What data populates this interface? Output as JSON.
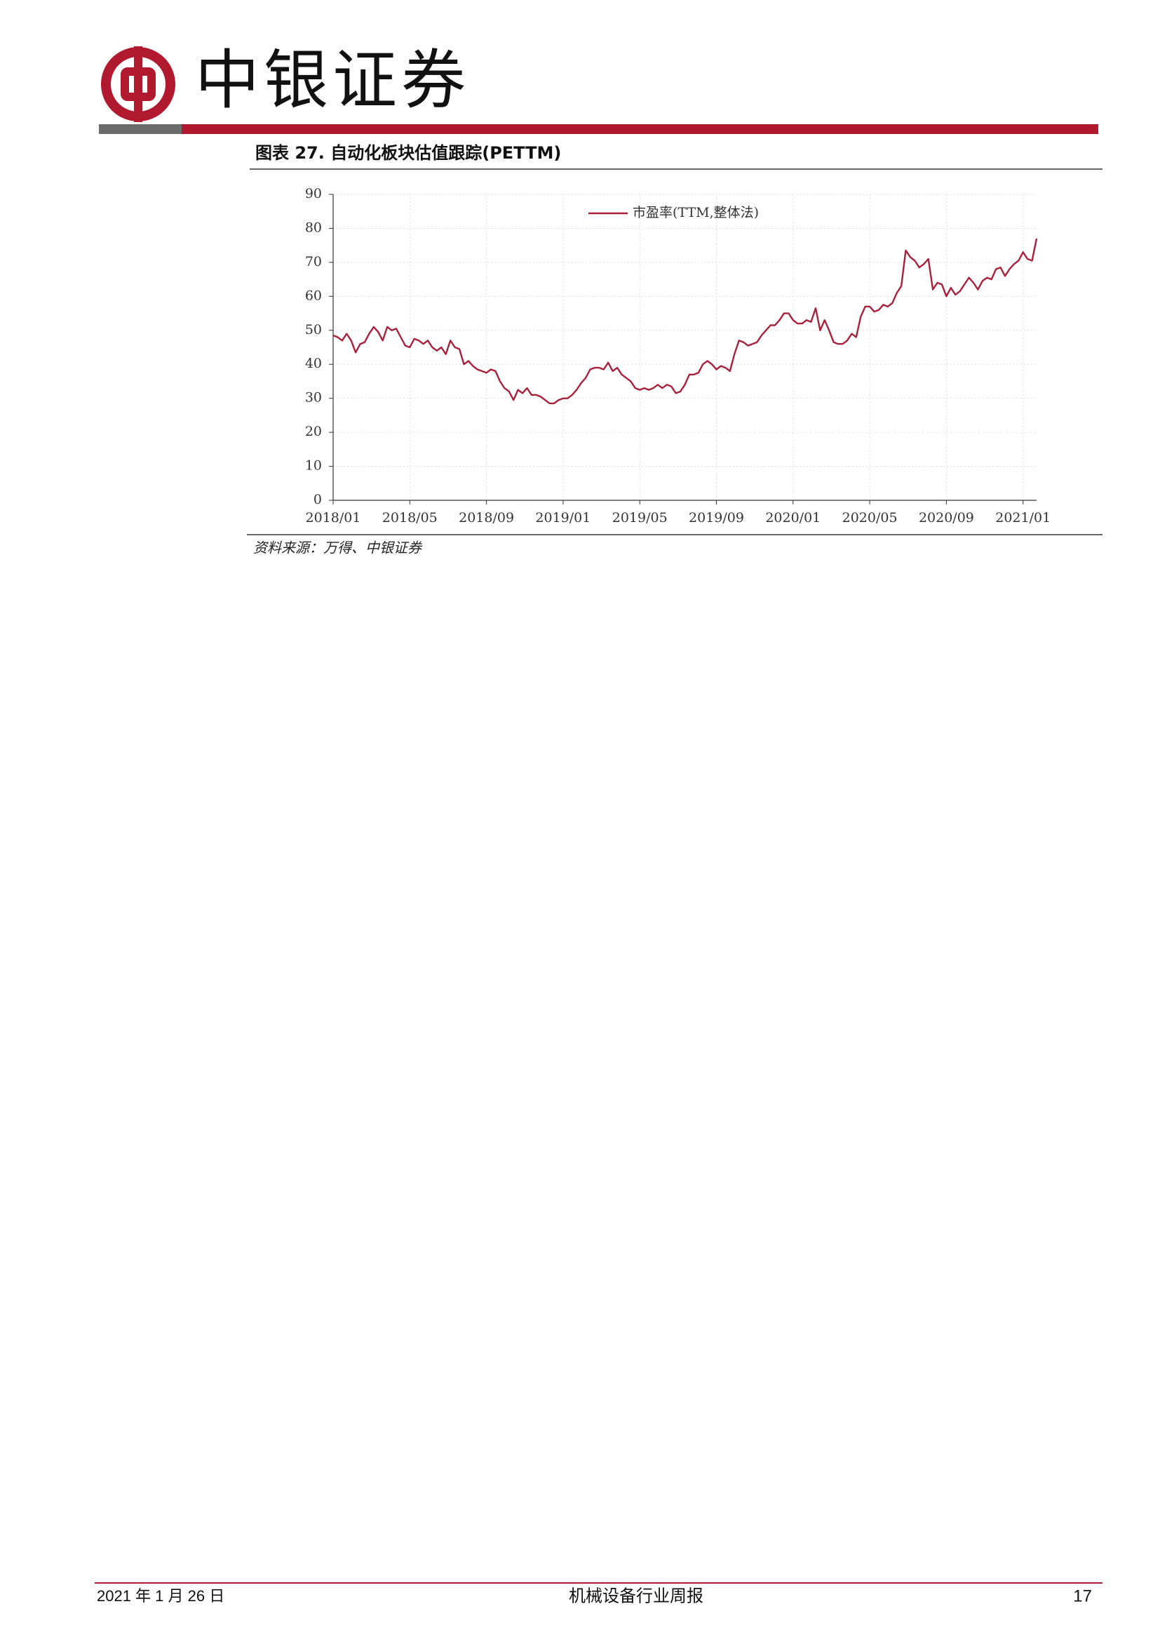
{
  "header": {
    "brand": "中银证券"
  },
  "figure_title": "图表 27. 自动化板块估值跟踪(PETTM)",
  "chart_data": {
    "type": "line",
    "categories": [
      "2018/01",
      null,
      null,
      null,
      null,
      null,
      null,
      null,
      null,
      null,
      null,
      null,
      null,
      null,
      null,
      null,
      null,
      "2018/05",
      null,
      null,
      null,
      null,
      null,
      null,
      null,
      null,
      null,
      null,
      null,
      null,
      null,
      null,
      null,
      null,
      "2018/09",
      null,
      null,
      null,
      null,
      null,
      null,
      null,
      null,
      null,
      null,
      null,
      null,
      null,
      null,
      null,
      null,
      "2019/01",
      null,
      null,
      null,
      null,
      null,
      null,
      null,
      null,
      null,
      null,
      null,
      null,
      null,
      null,
      null,
      null,
      "2019/05",
      null,
      null,
      null,
      null,
      null,
      null,
      null,
      null,
      null,
      null,
      null,
      null,
      null,
      null,
      null,
      null,
      "2019/09",
      null,
      null,
      null,
      null,
      null,
      null,
      null,
      null,
      null,
      null,
      null,
      null,
      null,
      null,
      null,
      null,
      "2020/01",
      null,
      null,
      null,
      null,
      null,
      null,
      null,
      null,
      null,
      null,
      null,
      null,
      null,
      null,
      null,
      null,
      "2020/05",
      null,
      null,
      null,
      null,
      null,
      null,
      null,
      null,
      null,
      null,
      null,
      null,
      null,
      null,
      null,
      null,
      "2020/09",
      null,
      null,
      null,
      null,
      null,
      null,
      null,
      null,
      null,
      null,
      null,
      null,
      null,
      null,
      null,
      null,
      "2021/01",
      null,
      null,
      null
    ],
    "series": [
      {
        "name": "市盈率(TTM,整体法)",
        "color": "#a8213b",
        "values": [
          48.5,
          48,
          47,
          49,
          47,
          43.5,
          46,
          46.5,
          49,
          51,
          49.5,
          47,
          51,
          50,
          50.5,
          48,
          45.5,
          45,
          47.5,
          47,
          46,
          47,
          45,
          44,
          45,
          43,
          47,
          45,
          44.5,
          40,
          41,
          39.5,
          38.5,
          38,
          37.5,
          38.5,
          38,
          35,
          33,
          32,
          29.5,
          32.5,
          31.5,
          33,
          31,
          31,
          30.5,
          29.5,
          28.5,
          28.5,
          29.5,
          30,
          30,
          31,
          32.5,
          34.5,
          36,
          38.5,
          39,
          39,
          38.5,
          40.5,
          38,
          39,
          37,
          36,
          35,
          33,
          32.5,
          33,
          32.5,
          33,
          34,
          33,
          34,
          33.5,
          31.5,
          32,
          34,
          37,
          37,
          37.5,
          40,
          41,
          40,
          38.5,
          39.5,
          39,
          38,
          43,
          47,
          46.5,
          45.5,
          46,
          46.5,
          48.5,
          50,
          51.5,
          51.5,
          53,
          55,
          55,
          53,
          52,
          52,
          53,
          52.5,
          56.5,
          50,
          53,
          50,
          46.5,
          46,
          46,
          47,
          49,
          48,
          54,
          57,
          57,
          55.5,
          56,
          57.5,
          57,
          58,
          61,
          63,
          73.5,
          71.5,
          70.5,
          68.5,
          69.5,
          71,
          62,
          64,
          63.5,
          60,
          62.5,
          60.5,
          61.5,
          63.5,
          65.5,
          64,
          62,
          64.5,
          65.5,
          65,
          68,
          68.5,
          66,
          68,
          69.5,
          70.5,
          73,
          71,
          70.5,
          77
        ]
      }
    ],
    "ylim": [
      0,
      90
    ],
    "yticks": [
      0,
      10,
      20,
      30,
      40,
      50,
      60,
      70,
      80,
      90
    ],
    "grid": true,
    "legend": "top"
  },
  "source": "资料来源：万得、中银证券",
  "footer": {
    "date": "2021 年 1 月 26 日",
    "report": "机械设备行业周报",
    "page": "17"
  }
}
